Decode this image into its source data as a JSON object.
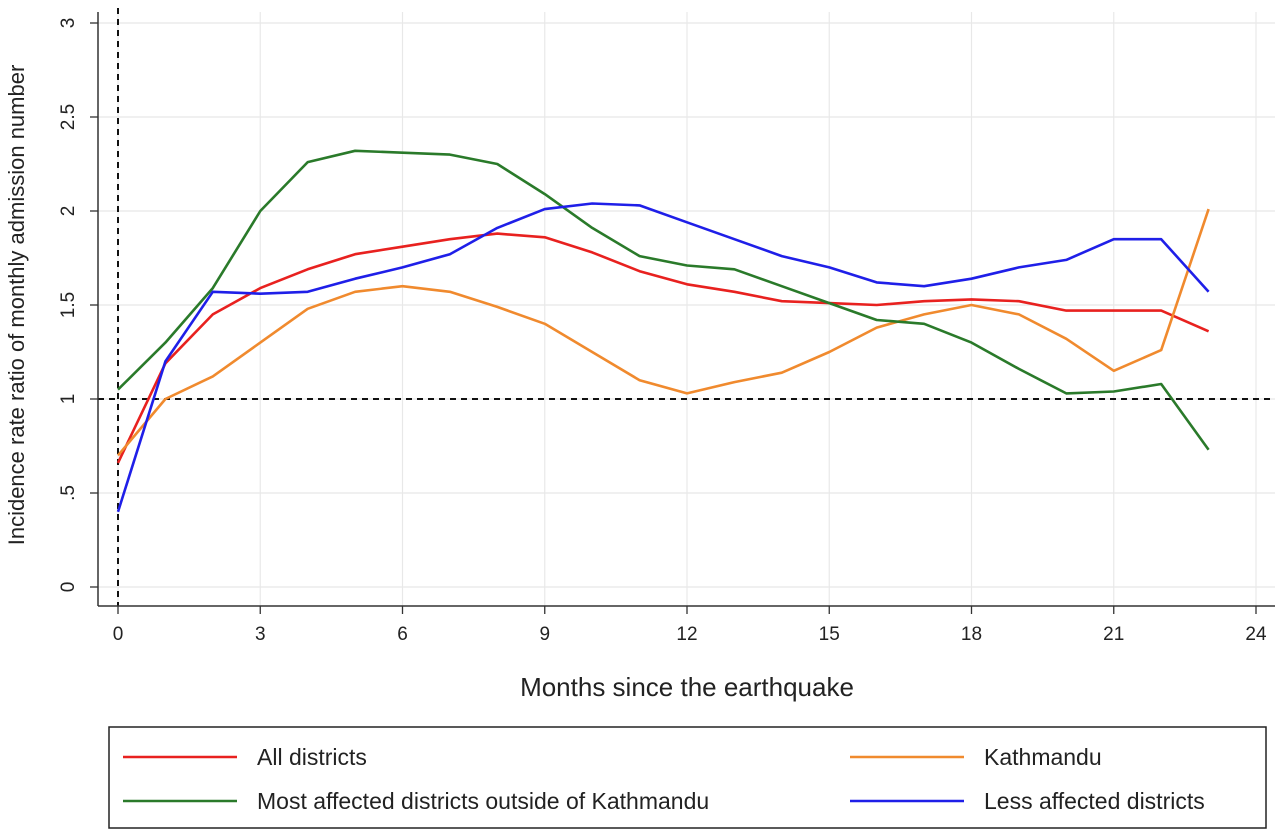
{
  "chart_data": {
    "type": "line",
    "xlabel": "Months since the earthquake",
    "ylabel": "Incidence rate ratio of monthly admission number",
    "xlim": [
      -0.5,
      24.5
    ],
    "ylim": [
      -0.1,
      3.05
    ],
    "x_ticks": [
      0,
      3,
      6,
      9,
      12,
      15,
      18,
      21,
      24
    ],
    "x_tick_labels": [
      "0",
      "3",
      "6",
      "9",
      "12",
      "15",
      "18",
      "21",
      "24"
    ],
    "y_ticks": [
      0,
      0.5,
      1,
      1.5,
      2,
      2.5,
      3
    ],
    "y_tick_labels": [
      "0",
      ".5",
      "1",
      "1.5",
      "2",
      "2.5",
      "3"
    ],
    "grid": true,
    "reference_lines": [
      {
        "axis": "x",
        "value": 0,
        "style": "dashed"
      },
      {
        "axis": "y",
        "value": 1,
        "style": "dashed"
      }
    ],
    "legend_position": "bottom",
    "x": [
      0,
      1,
      2,
      3,
      4,
      5,
      6,
      7,
      8,
      9,
      10,
      11,
      12,
      13,
      14,
      15,
      16,
      17,
      18,
      19,
      20,
      21,
      22,
      23
    ],
    "series": [
      {
        "name": "All districts",
        "color": "#e8211f",
        "values": [
          0.66,
          1.19,
          1.45,
          1.59,
          1.69,
          1.77,
          1.81,
          1.85,
          1.88,
          1.86,
          1.78,
          1.68,
          1.61,
          1.57,
          1.52,
          1.51,
          1.5,
          1.52,
          1.53,
          1.52,
          1.47,
          1.47,
          1.47,
          1.36
        ]
      },
      {
        "name": "Kathmandu",
        "color": "#f08a2e",
        "values": [
          0.7,
          1.0,
          1.12,
          1.3,
          1.48,
          1.57,
          1.6,
          1.57,
          1.49,
          1.4,
          1.25,
          1.1,
          1.03,
          1.09,
          1.14,
          1.25,
          1.38,
          1.45,
          1.5,
          1.45,
          1.32,
          1.15,
          1.26,
          2.01
        ]
      },
      {
        "name": "Most affected districts outside of Kathmandu",
        "color": "#2a7a2a",
        "values": [
          1.05,
          1.3,
          1.59,
          2.0,
          2.26,
          2.32,
          2.31,
          2.3,
          2.25,
          2.09,
          1.91,
          1.76,
          1.71,
          1.69,
          1.6,
          1.51,
          1.42,
          1.4,
          1.3,
          1.16,
          1.03,
          1.04,
          1.08,
          0.73
        ]
      },
      {
        "name": "Less affected districts",
        "color": "#1f1fe8",
        "values": [
          0.4,
          1.2,
          1.57,
          1.56,
          1.57,
          1.64,
          1.7,
          1.77,
          1.91,
          2.01,
          2.04,
          2.03,
          1.94,
          1.85,
          1.76,
          1.7,
          1.62,
          1.6,
          1.64,
          1.7,
          1.74,
          1.85,
          1.85,
          1.57
        ]
      }
    ]
  }
}
